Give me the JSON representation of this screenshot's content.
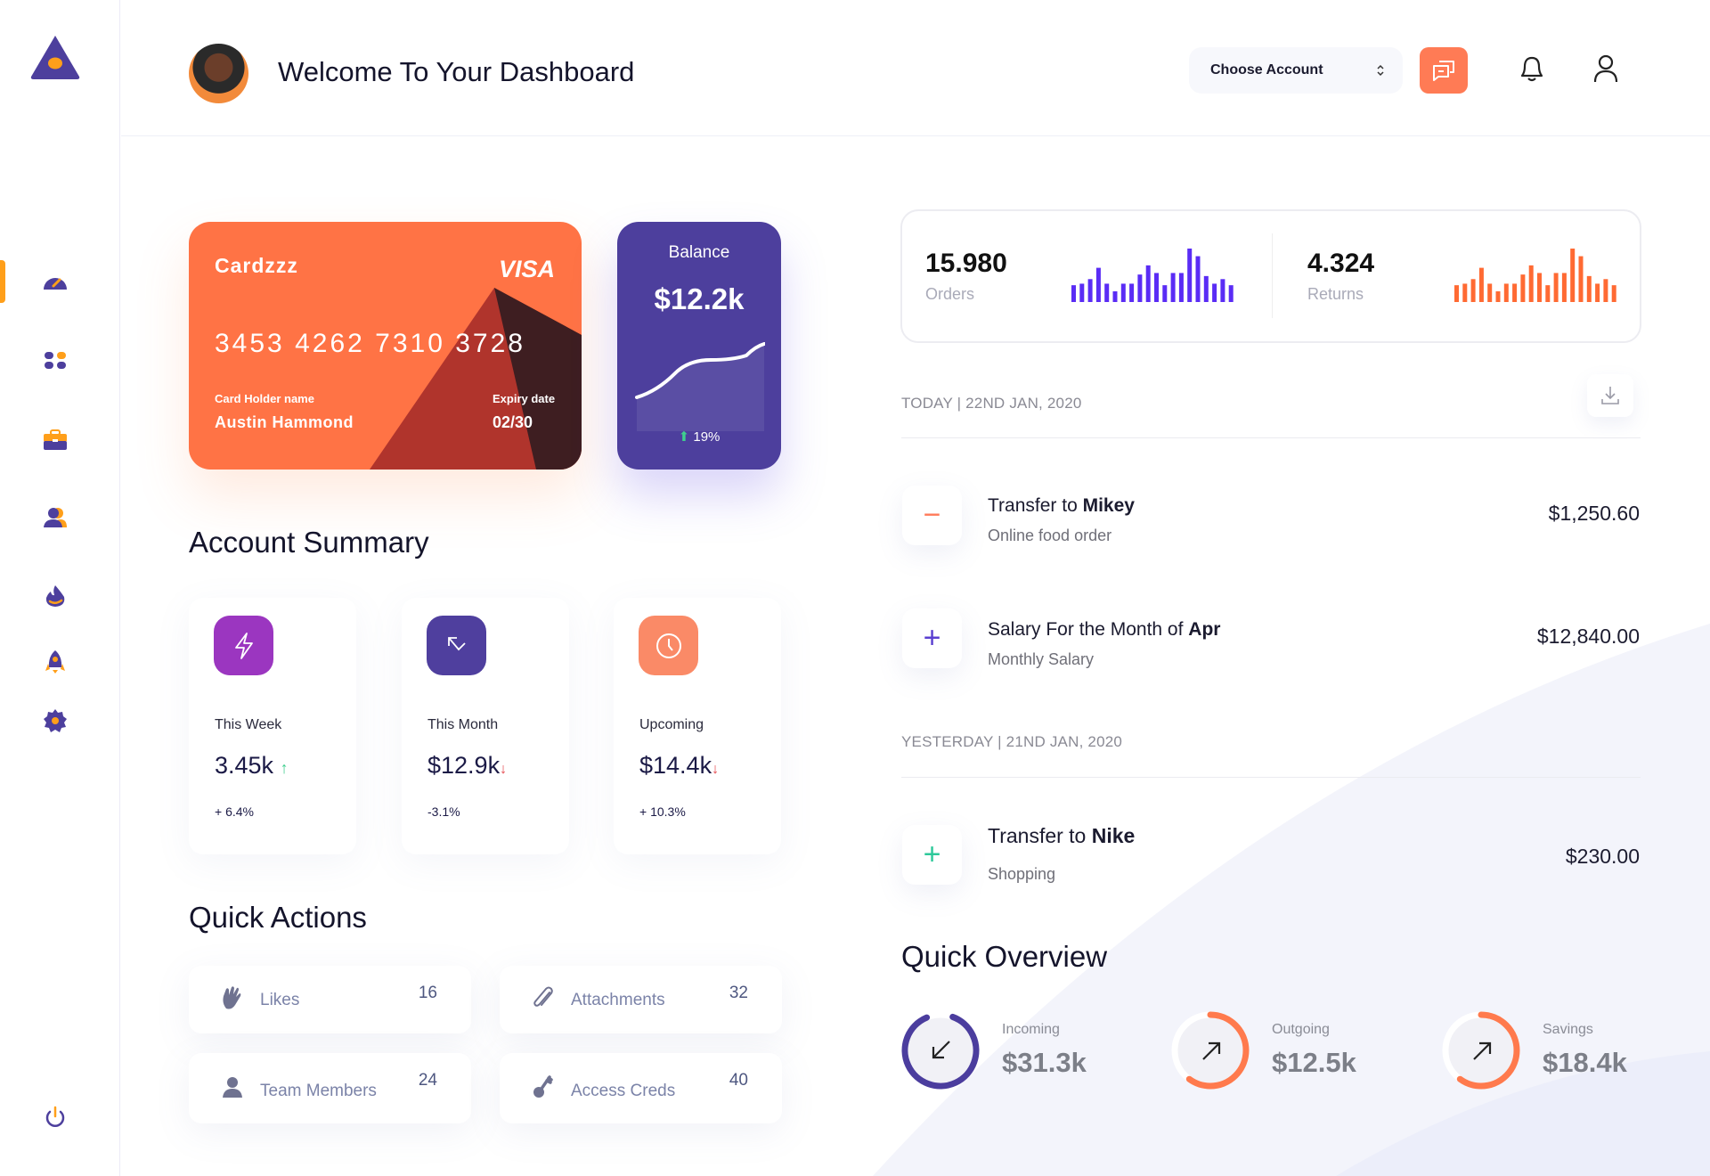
{
  "header": {
    "title": "Welcome To Your Dashboard",
    "account_select": "Choose Account"
  },
  "sidebar": {
    "items": [
      {
        "icon": "dashboard-gauge-icon",
        "active": true
      },
      {
        "icon": "apps-grid-icon"
      },
      {
        "icon": "briefcase-icon"
      },
      {
        "icon": "users-icon"
      },
      {
        "icon": "fire-icon"
      },
      {
        "icon": "rocket-icon"
      },
      {
        "icon": "gear-icon"
      }
    ],
    "logout_icon": "power-icon"
  },
  "card": {
    "brand": "Cardzzz",
    "network": "VISA",
    "number": "3453 4262 7310 3728",
    "holder_label": "Card Holder name",
    "holder": "Austin Hammond",
    "expiry_label": "Expiry date",
    "expiry": "02/30"
  },
  "balance": {
    "title": "Balance",
    "value": "$12.2k",
    "change": "19%"
  },
  "account_summary": {
    "title": "Account Summary",
    "items": [
      {
        "label": "This Week",
        "value": "3.45k",
        "trend": "up",
        "change": "+ 6.4%",
        "color": "#9b36c0",
        "icon": "lightning-icon"
      },
      {
        "label": "This Month",
        "value": "$12.9k",
        "trend": "down",
        "change": "-3.1%",
        "color": "#4f3f9e",
        "icon": "arrow-up-left-down-icon"
      },
      {
        "label": "Upcoming",
        "value": "$14.4k",
        "trend": "down",
        "change": "+ 10.3%",
        "color": "#fa8a67",
        "icon": "clock-icon"
      }
    ]
  },
  "quick_actions": {
    "title": "Quick Actions",
    "items": [
      {
        "label": "Likes",
        "count": "16",
        "icon": "hand-wave-icon"
      },
      {
        "label": "Attachments",
        "count": "32",
        "icon": "paperclip-icon"
      },
      {
        "label": "Team Members",
        "count": "24",
        "icon": "person-icon"
      },
      {
        "label": "Access Creds",
        "count": "40",
        "icon": "key-icon"
      }
    ]
  },
  "stats": {
    "orders": {
      "value": "15.980",
      "label": "Orders",
      "color": "#5a2cf5",
      "bars": [
        55,
        60,
        75,
        112,
        60,
        35,
        60,
        60,
        90,
        120,
        95,
        55,
        95,
        95,
        175,
        150,
        85,
        60,
        75,
        55
      ]
    },
    "returns": {
      "value": "4.324",
      "label": "Returns",
      "color": "#ff6a33",
      "bars": [
        55,
        60,
        75,
        112,
        60,
        35,
        60,
        60,
        90,
        120,
        95,
        55,
        95,
        95,
        175,
        150,
        85,
        60,
        75,
        55
      ]
    }
  },
  "transactions": {
    "today_label": "TODAY | 22ND JAN, 2020",
    "yesterday_label": "YESTERDAY | 21ND JAN, 2020",
    "items": [
      {
        "prefix": "Transfer to ",
        "name": "Mikey",
        "sub": "Online food order",
        "amount": "$1,250.60",
        "sign": "−",
        "color": "#ff7a59"
      },
      {
        "prefix": "Salary For the Month of ",
        "name": "Apr",
        "sub": "Monthly Salary",
        "amount": "$12,840.00",
        "sign": "+",
        "color": "#5a3fd0"
      },
      {
        "prefix": "Transfer to ",
        "name": "Nike",
        "sub": "Shopping",
        "amount": "$230.00",
        "sign": "+",
        "color": "#2ec99a"
      }
    ]
  },
  "overview": {
    "title": "Quick Overview",
    "items": [
      {
        "label": "Incoming",
        "value": "$31.3k",
        "progress": 0.88,
        "color": "#4b3d9e"
      },
      {
        "label": "Outgoing",
        "value": "$12.5k",
        "progress": 0.6,
        "color": "#ff7a4d"
      },
      {
        "label": "Savings",
        "value": "$18.4k",
        "progress": 0.6,
        "color": "#ff7a4d"
      }
    ]
  }
}
